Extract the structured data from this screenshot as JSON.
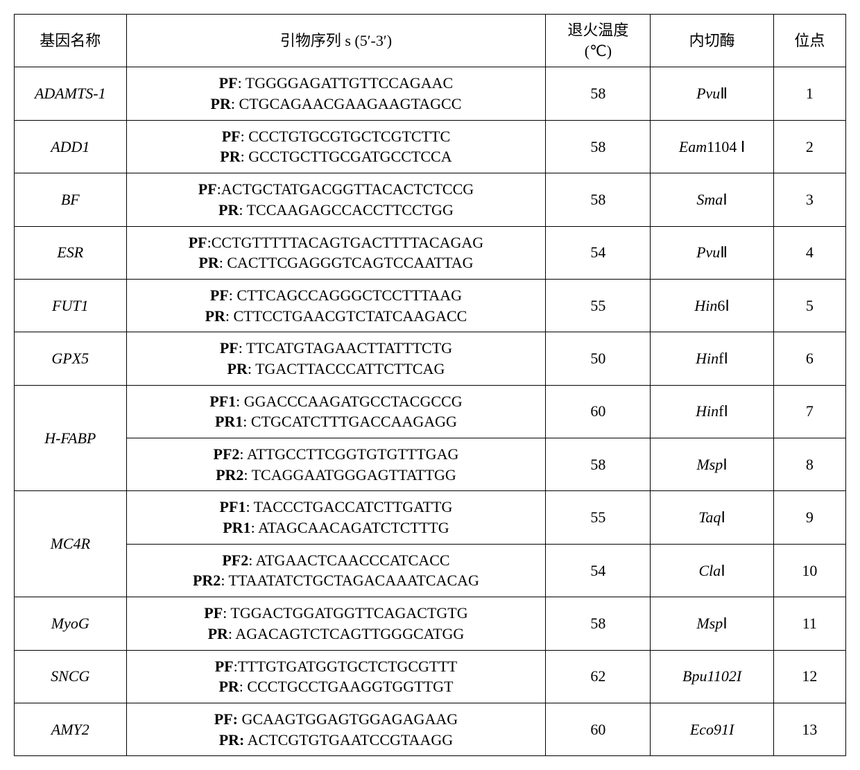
{
  "headers": {
    "gene": "基因名称",
    "primer": "引物序列 s (5′-3′)",
    "temp_line1": "退火温度",
    "temp_line2": "(℃)",
    "enzyme": "内切酶",
    "site": "位点"
  },
  "rows": [
    {
      "gene": "ADAMTS-1",
      "pf_label": "PF",
      "pf_seq": ": TGGGGAGATTGTTCCAGAAC",
      "pr_label": "PR",
      "pr_seq": ": CTGCAGAACGAAGAAGTAGCC",
      "temp": "58",
      "enzyme_ital": "Pvu",
      "enzyme_rest": "Ⅱ",
      "site": "1"
    },
    {
      "gene": "ADD1",
      "pf_label": "PF",
      "pf_seq": ": CCCTGTGCGTGCTCGTCTTC",
      "pr_label": "PR",
      "pr_seq": ": GCCTGCTTGCGATGCCTCCA",
      "temp": "58",
      "enzyme_ital": "Eam",
      "enzyme_rest": "1104 Ⅰ",
      "site": "2"
    },
    {
      "gene": "BF",
      "pf_label": "PF",
      "pf_seq": ":ACTGCTATGACGGTTACACTCTCCG",
      "pr_label": "PR",
      "pr_seq": ": TCCAAGAGCCACCTTCCTGG",
      "temp": "58",
      "enzyme_ital": "Sma",
      "enzyme_rest": "Ⅰ",
      "site": "3"
    },
    {
      "gene": "ESR",
      "pf_label": "PF",
      "pf_seq": ":CCTGTTTTTACAGTGACTTTTACAGAG",
      "pr_label": "PR",
      "pr_seq": ": CACTTCGAGGGTCAGTCCAATTAG",
      "temp": "54",
      "enzyme_ital": "Pvu",
      "enzyme_rest": "Ⅱ",
      "site": "4"
    },
    {
      "gene": "FUT1",
      "pf_label": "PF",
      "pf_seq": ": CTTCAGCCAGGGCTCCTTTAAG",
      "pr_label": "PR",
      "pr_seq": ": CTTCCTGAACGTCTATCAAGACC",
      "temp": "55",
      "enzyme_ital": "Hin",
      "enzyme_rest": "6Ⅰ",
      "site": "5"
    },
    {
      "gene": "GPX5",
      "pf_label": "PF",
      "pf_seq": ": TTCATGTAGAACTTATTTCTG",
      "pr_label": "PR",
      "pr_seq": ": TGACTTACCCATTCTTCAG",
      "temp": "50",
      "enzyme_ital": "Hin",
      "enzyme_rest": "fⅠ",
      "site": "6"
    },
    {
      "gene": "H-FABP",
      "sub": [
        {
          "pf_label": "PF1",
          "pf_seq": ": GGACCCAAGATGCCTACGCCG",
          "pr_label": "PR1",
          "pr_seq": ": CTGCATCTTTGACCAAGAGG",
          "temp": "60",
          "enzyme_ital": "Hin",
          "enzyme_rest": "fⅠ",
          "site": "7"
        },
        {
          "pf_label": "PF2",
          "pf_seq": ": ATTGCCTTCGGTGTGTTTGAG",
          "pr_label": "PR2",
          "pr_seq": ": TCAGGAATGGGAGTTATTGG",
          "temp": "58",
          "enzyme_ital": "Msp",
          "enzyme_rest": "Ⅰ",
          "site": "8"
        }
      ]
    },
    {
      "gene": "MC4R",
      "sub": [
        {
          "pf_label": "PF1",
          "pf_seq": ": TACCCTGACCATCTTGATTG",
          "pr_label": "PR1",
          "pr_seq": ": ATAGCAACAGATCTCTTTG",
          "temp": "55",
          "enzyme_ital": "Taq",
          "enzyme_rest": "Ⅰ",
          "site": "9"
        },
        {
          "pf_label": "PF2",
          "pf_seq": ": ATGAACTCAACCCATCACC",
          "pr_label": "PR2",
          "pr_seq": ": TTAATATCTGCTAGACAAATCACAG",
          "temp": "54",
          "enzyme_ital": "Cla",
          "enzyme_rest": "Ⅰ",
          "site": "10"
        }
      ]
    },
    {
      "gene": "MyoG",
      "pf_label": "PF",
      "pf_seq": ": TGGACTGGATGGTTCAGACTGTG",
      "pr_label": "PR",
      "pr_seq": ": AGACAGTCTCAGTTGGGCATGG",
      "temp": "58",
      "enzyme_ital": "Msp",
      "enzyme_rest": "Ⅰ",
      "site": "11"
    },
    {
      "gene": "SNCG",
      "pf_label": "PF",
      "pf_seq": ":TTTGTGATGGTGCTCTGCGTTT",
      "pr_label": "PR",
      "pr_seq": ": CCCTGCCTGAAGGTGGTTGT",
      "temp": "62",
      "enzyme_ital": "Bpu1102I",
      "enzyme_rest": "",
      "site": "12"
    },
    {
      "gene": "AMY2",
      "pf_label": "PF:",
      "pf_seq": " GCAAGTGGAGTGGAGAGAAG",
      "pr_label": "PR:",
      "pr_seq": " ACTCGTGTGAATCCGTAAGG",
      "temp": "60",
      "enzyme_ital": "Eco91I",
      "enzyme_rest": "",
      "site": "13"
    }
  ]
}
